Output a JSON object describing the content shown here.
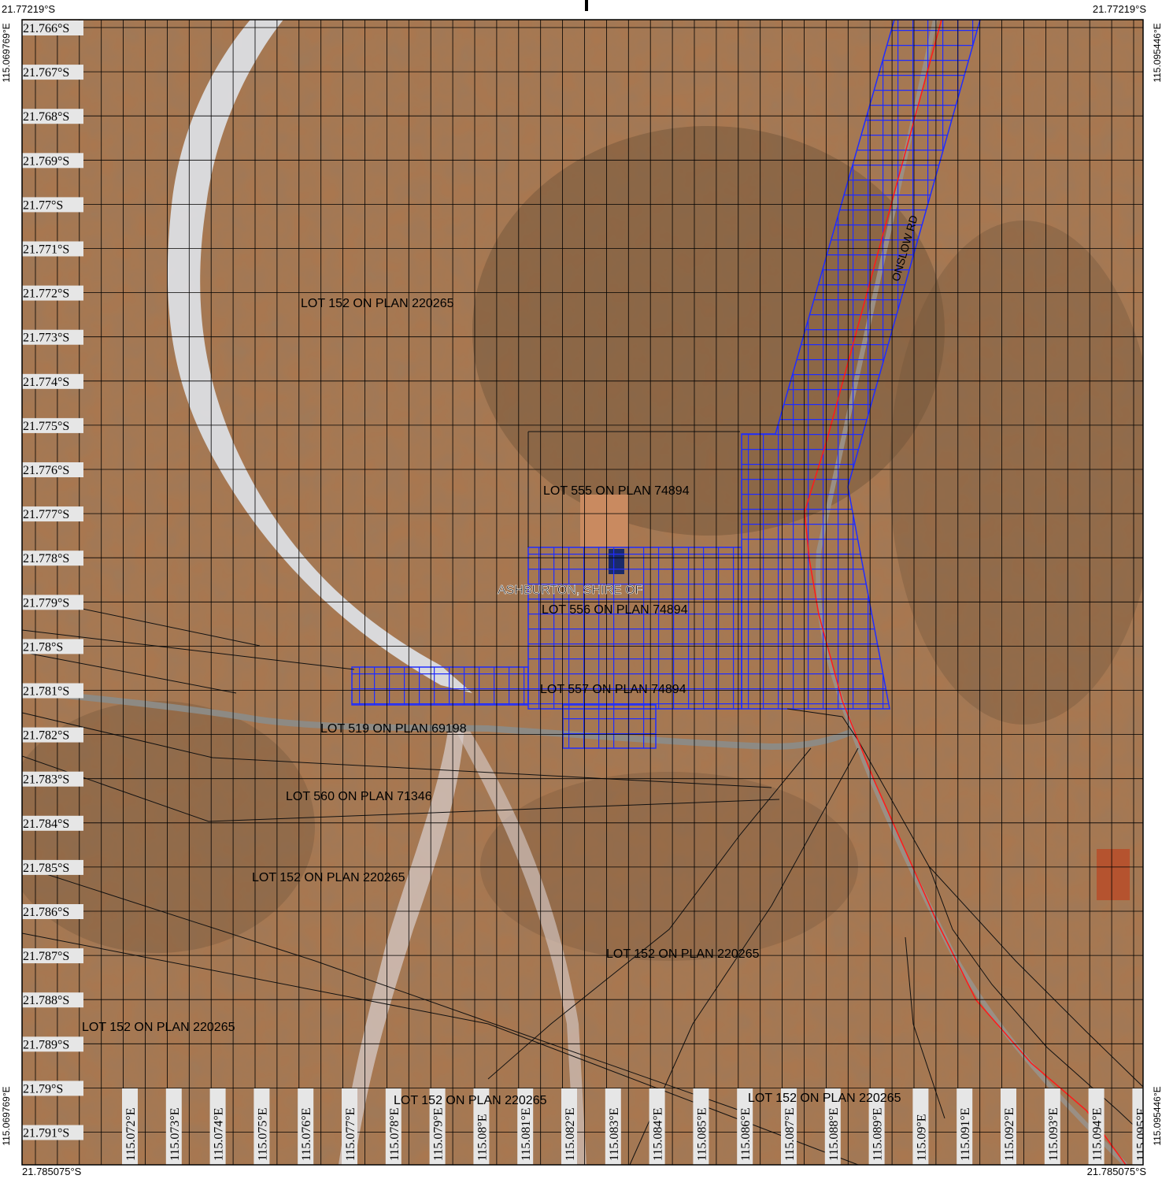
{
  "frame": {
    "corner_top_left": "21.77219°S",
    "corner_top_right": "21.77219°S",
    "corner_bottom_left": "21.785075°S",
    "corner_bottom_right": "21.785075°S",
    "side_left_top": "115.069769°E",
    "side_left_bottom": "115.069769°E",
    "side_right_top": "115.095446°E",
    "side_right_bottom": "115.095446°E"
  },
  "latitude_labels": [
    "21.766°S",
    "21.767°S",
    "21.768°S",
    "21.769°S",
    "21.77°S",
    "21.771°S",
    "21.772°S",
    "21.773°S",
    "21.774°S",
    "21.775°S",
    "21.776°S",
    "21.777°S",
    "21.778°S",
    "21.779°S",
    "21.78°S",
    "21.781°S",
    "21.782°S",
    "21.783°S",
    "21.784°S",
    "21.785°S",
    "21.786°S",
    "21.787°S",
    "21.788°S",
    "21.789°S",
    "21.79°S",
    "21.791°S"
  ],
  "longitude_labels": [
    "115.072°E",
    "115.073°E",
    "115.074°E",
    "115.075°E",
    "115.076°E",
    "115.077°E",
    "115.078°E",
    "115.079°E",
    "115.08°E",
    "115.081°E",
    "115.082°E",
    "115.083°E",
    "115.084°E",
    "115.085°E",
    "115.086°E",
    "115.087°E",
    "115.088°E",
    "115.089°E",
    "115.09°E",
    "115.091°E",
    "115.092°E",
    "115.093°E",
    "115.094°E",
    "115.095°E"
  ],
  "parcel_labels": [
    {
      "text": "LOT 152 ON PLAN 220265"
    },
    {
      "text": "LOT 555 ON PLAN 74894"
    },
    {
      "text": "ASHBURTON, SHIRE OF"
    },
    {
      "text": "LOT 556 ON PLAN 74894"
    },
    {
      "text": "LOT 557 ON PLAN 74894"
    },
    {
      "text": "LOT 519 ON PLAN 69198"
    },
    {
      "text": "LOT 560 ON PLAN 71346"
    },
    {
      "text": "LOT 152 ON PLAN 220265"
    },
    {
      "text": "LOT 152 ON PLAN 220265"
    },
    {
      "text": "LOT 152 ON PLAN 220265"
    },
    {
      "text": "LOT 152 ON PLAN 220265"
    },
    {
      "text": "LOT 152 ON PLAN 220265"
    }
  ],
  "road_label": "ONSLOW RD",
  "colors": {
    "terrain": "#a9774f",
    "terrain_dark": "#6f5238",
    "riverbed": "#dfe3ea",
    "hatch": "#1f2cff",
    "road_centerline": "#ff1a1a",
    "grid": "#000000",
    "cleared_pad": "#c98a60"
  }
}
